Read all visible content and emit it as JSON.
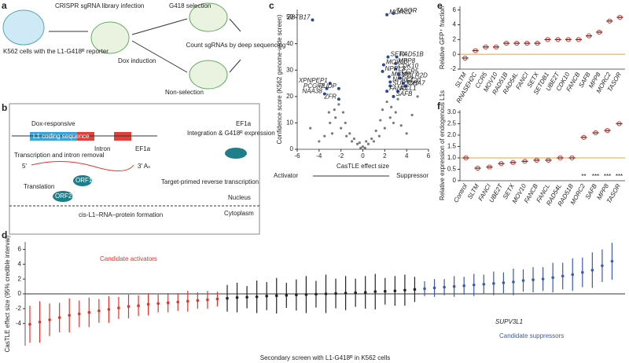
{
  "panel_labels": [
    "a",
    "b",
    "c",
    "d",
    "e",
    "f"
  ],
  "diagram_a": {
    "cells": "K562 cells with the L1-G418ᴿ reporter",
    "infection": "CRISPR sgRNA library infection",
    "dox": "Dox induction",
    "selection": "G418 selection",
    "nonselection": "Non-selection",
    "count": "Count sgRNAs by deep sequencing"
  },
  "diagram_b": {
    "dox_responsive": "Dox-responsive",
    "l1": "L1 coding sequence",
    "intron": "Intron",
    "ef1a": "EF1a",
    "transcription": "Transcription and intron removal",
    "five": "5′",
    "three": "3′ Aₙ",
    "translation": "Translation",
    "orf1p": "ORF1p",
    "orf2p": "ORF2p",
    "cis": "cis-L1–RNA–protein formation",
    "tprt": "Target-primed reverse transcription",
    "integration": "Integration & G418ᴿ expression",
    "ef1a2": "EF1a",
    "nucleus": "Nucleus",
    "cytoplasm": "Cytoplasm"
  },
  "chart_data": [
    {
      "type": "scatter",
      "xlabel": "CasTLE effect size",
      "ylabel": "Confidence score (K562 genome-wide screen)",
      "xlim": [
        -6,
        6
      ],
      "ylim": [
        0,
        53
      ],
      "xticks": [
        -6,
        -4,
        -2,
        0,
        2,
        4,
        6
      ],
      "yticks": [
        0,
        10,
        20,
        30,
        40,
        50
      ],
      "color": "#222222",
      "highlight_color": "#2b4a9c",
      "annotations": [
        "Activator",
        "Suppressor"
      ],
      "x": [
        2.2,
        2.8,
        -4.6,
        2.3,
        3.1,
        3.0,
        1.9,
        3.0,
        1.8,
        3.3,
        2.4,
        3.4,
        2.5,
        3.7,
        2.5,
        3.9,
        2.2,
        3.2,
        2.8,
        -3.0,
        -3.3,
        -2.2,
        -3.5,
        -2.2,
        -2,
        -1.5,
        -1,
        -0.5,
        0,
        0.5,
        1,
        1.5,
        2,
        -2.5,
        2.5,
        -1.8,
        1.8,
        -3,
        3,
        -2.2,
        2.2,
        -1.2,
        1.2,
        -0.8,
        0.8,
        -3.5,
        3.5,
        -4,
        4,
        -2.8,
        2.8,
        0.2,
        -0.2,
        1.6,
        -1.6,
        2.6,
        -2.6,
        3.2,
        -3.1,
        4.5,
        -4.8,
        5,
        0.3,
        -0.3
      ],
      "values": [
        51,
        51.5,
        49,
        35,
        35,
        32.5,
        32,
        30.5,
        29.5,
        28.5,
        27.5,
        27,
        25.5,
        25,
        24,
        24,
        22,
        22,
        20,
        25,
        23,
        23,
        21,
        19,
        8,
        5,
        3,
        2,
        1,
        2,
        3,
        5,
        8,
        12,
        12,
        14,
        15,
        10,
        14,
        17,
        18,
        6,
        7,
        4,
        4,
        5,
        9,
        3,
        6,
        6,
        10,
        0.5,
        0.5,
        11,
        10,
        16,
        15,
        19,
        14,
        13,
        8,
        20,
        3,
        2.5
      ],
      "labels": [
        "MORC2",
        "TASOR",
        "ZBTB17",
        "SETX",
        "RAD51B",
        "MPP8",
        "MOV10",
        "CDK10",
        "NPRL3",
        "CCR5",
        "MCM9",
        "POLR2D",
        "NPRL2",
        "ST20",
        "SUPT6H",
        "COA7",
        "FANCI",
        "RCL1",
        "SAFB",
        "XPNPEP1",
        "PCGF2",
        "PUDP",
        "NAA38",
        "ZFR",
        null,
        null,
        null,
        null,
        null,
        null,
        null,
        null,
        null,
        null,
        null,
        null,
        null,
        null,
        null,
        null,
        null,
        null,
        null,
        null,
        null,
        null,
        null,
        null,
        null,
        null,
        null,
        null,
        null,
        null,
        null,
        null,
        null,
        null,
        null,
        null,
        null,
        null,
        null,
        null
      ]
    },
    {
      "type": "strip",
      "ylabel": "Relative GFP⁺ fraction",
      "ylim": [
        -2,
        6.5
      ],
      "yticks": [
        -2,
        0,
        2,
        4,
        6
      ],
      "reference_line": 0,
      "reference_color": "#f0a020",
      "color": "#e2332b",
      "categories": [
        "SLTM",
        "RNASEH2C",
        "CCR5",
        "MOV10",
        "RAD51B",
        "RAD54L",
        "FANCI",
        "SETX",
        "SETDB1",
        "UBE2T",
        "CDK10",
        "FANCB",
        "SAFB",
        "MPP8",
        "MORC2",
        "TASOR"
      ],
      "values": [
        -0.5,
        0.5,
        1,
        1,
        1.5,
        1.5,
        1.5,
        1.5,
        2,
        2,
        2,
        2,
        2.5,
        3,
        4.5,
        5
      ]
    },
    {
      "type": "strip",
      "ylabel": "Relative expression of endogenous L1s",
      "ylim": [
        0,
        3.1
      ],
      "yticks": [
        0,
        0.5,
        {
          "value": 1,
          "label": "1.0"
        },
        1.5,
        {
          "value": 2,
          "label": "2.0"
        },
        2.5,
        {
          "value": 3,
          "label": "3.0"
        }
      ],
      "reference_line": 1,
      "reference_color": "#f0a020",
      "color": "#e2332b",
      "categories": [
        "Control",
        "SLTM",
        "FANCI",
        "UBE2T",
        "SETX",
        "MOV10",
        "FANCB",
        "FANCL",
        "RAD54L",
        "RAD51B",
        "MORC2",
        "SAFB",
        "MPP8",
        "TASOR"
      ],
      "values": [
        1.0,
        0.55,
        0.6,
        0.75,
        0.8,
        0.85,
        0.9,
        0.9,
        1.0,
        1.0,
        1.9,
        2.1,
        2.2,
        2.5
      ],
      "significance": [
        null,
        null,
        null,
        null,
        null,
        null,
        null,
        null,
        null,
        null,
        "**",
        "***",
        "***",
        "***"
      ]
    },
    {
      "type": "errorbar",
      "xlabel": "Secondary screen with L1-G418ᴿ in K562 cells",
      "ylabel": "CasTLE effect size (95% credible interval)",
      "ylim": [
        -7,
        7
      ],
      "yticks": [
        -4,
        -2,
        0,
        2,
        4,
        6
      ],
      "annotations": [
        "SUPV3L1"
      ],
      "series": [
        {
          "name": "Candidate activators",
          "color": "#e2332b",
          "values": [
            -4.1,
            -3.8,
            -3.5,
            -3.2,
            -2.9,
            -2.7,
            -2.5,
            -2.3,
            -2.1,
            -1.9,
            -1.7,
            -1.6,
            -1.4,
            -1.3,
            -1.2,
            -1.1,
            -1.0,
            -0.9,
            -0.8,
            -0.7
          ],
          "errors": [
            2.5,
            2.8,
            2.2,
            2.0,
            2.3,
            1.8,
            2.0,
            1.6,
            1.8,
            1.5,
            1.6,
            1.4,
            1.5,
            1.2,
            1.3,
            1.2,
            1.4,
            1.1,
            1.2,
            1.0
          ]
        },
        {
          "color": "#222222",
          "values": [
            -0.6,
            -0.5,
            -0.45,
            -0.4,
            -0.3,
            -0.25,
            -0.2,
            -0.15,
            -0.1,
            -0.05,
            0,
            0.05,
            0.1,
            0.15,
            0.2,
            0.3,
            0.35,
            0.4,
            0.5,
            0.6
          ],
          "errors": [
            1.8,
            2.0,
            1.5,
            2.2,
            1.9,
            2.4,
            1.7,
            2.1,
            2.5,
            1.8,
            2.6,
            2.0,
            2.3,
            1.9,
            2.2,
            2.4,
            1.8,
            2.0,
            2.1,
            1.7
          ]
        },
        {
          "name": "Candidate suppressors",
          "color": "#3a5ba8",
          "values": [
            0.7,
            0.8,
            0.9,
            1.0,
            1.1,
            1.2,
            1.3,
            1.4,
            1.5,
            1.6,
            1.8,
            1.9,
            2.0,
            2.2,
            2.4,
            2.6,
            2.9,
            3.2,
            3.8,
            4.4
          ],
          "errors": [
            1.0,
            1.2,
            1.1,
            1.4,
            1.2,
            1.5,
            1.3,
            1.6,
            1.4,
            1.8,
            1.5,
            1.7,
            1.6,
            2.0,
            1.8,
            2.2,
            2.0,
            2.4,
            2.2,
            2.5
          ]
        }
      ]
    }
  ]
}
